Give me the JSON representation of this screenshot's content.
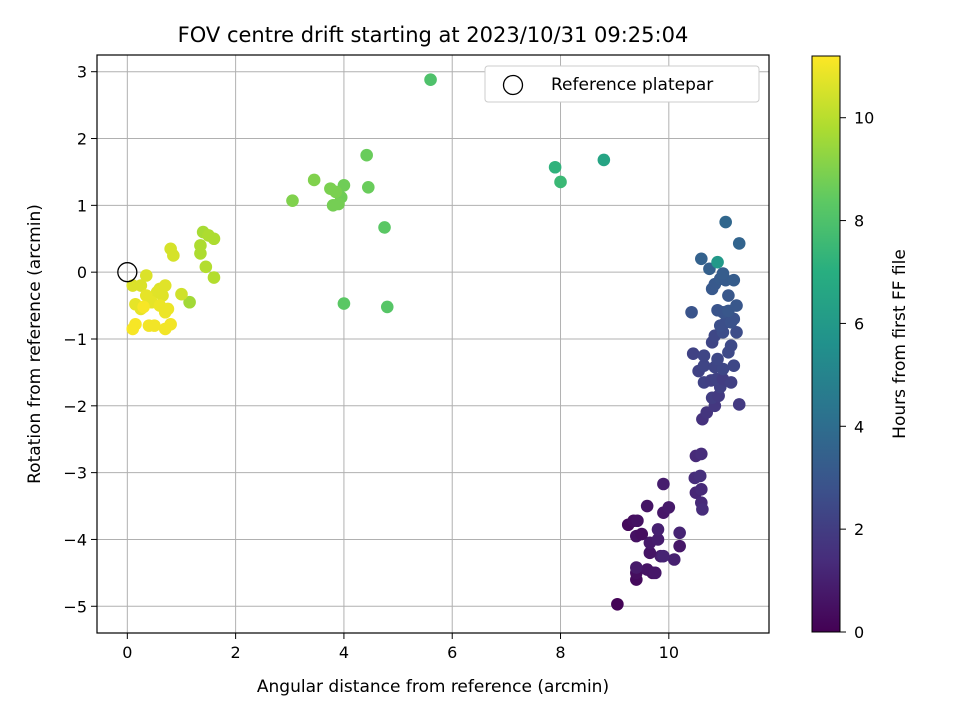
{
  "chart_data": {
    "type": "scatter",
    "title": "FOV centre drift starting at 2023/10/31 09:25:04",
    "xlabel": "Angular distance from reference (arcmin)",
    "ylabel": "Rotation from reference (arcmin)",
    "xlim": [
      -0.56,
      11.85
    ],
    "ylim": [
      -5.4,
      3.25
    ],
    "x_ticks": [
      0,
      2,
      4,
      6,
      8,
      10
    ],
    "y_ticks": [
      3,
      2,
      1,
      0,
      -1,
      -2,
      -3,
      -4,
      -5
    ],
    "x_tick_labels": [
      "0",
      "2",
      "4",
      "6",
      "8",
      "10"
    ],
    "y_tick_labels": [
      "3",
      "2",
      "1",
      "0",
      "−1",
      "−2",
      "−3",
      "−4",
      "−5"
    ],
    "grid": true,
    "legend": {
      "placement": "upper-right",
      "entries": [
        "Reference platepar"
      ]
    },
    "reference_point": {
      "x": 0,
      "y": 0,
      "label": "Reference platepar"
    },
    "colorbar": {
      "label": "Hours from first FF file",
      "colormap": "viridis",
      "range": [
        0,
        11.2
      ],
      "ticks": [
        0,
        2,
        4,
        6,
        8,
        10
      ],
      "tick_labels": [
        "0",
        "2",
        "4",
        "6",
        "8",
        "10"
      ]
    },
    "points": [
      [
        9.05,
        -4.97,
        0.1
      ],
      [
        9.4,
        -4.6,
        0.3
      ],
      [
        9.4,
        -4.5,
        0.4
      ],
      [
        9.7,
        -4.5,
        0.5
      ],
      [
        9.6,
        -4.45,
        0.6
      ],
      [
        9.75,
        -4.5,
        0.7
      ],
      [
        9.4,
        -4.42,
        0.8
      ],
      [
        9.85,
        -4.25,
        0.9
      ],
      [
        10.1,
        -4.3,
        1.0
      ],
      [
        9.9,
        -4.25,
        1.1
      ],
      [
        9.65,
        -4.2,
        0.6
      ],
      [
        10.2,
        -4.1,
        0.7
      ],
      [
        9.65,
        -4.05,
        0.8
      ],
      [
        9.4,
        -3.95,
        0.5
      ],
      [
        9.8,
        -4.0,
        0.9
      ],
      [
        9.5,
        -3.92,
        0.4
      ],
      [
        9.8,
        -3.85,
        1.0
      ],
      [
        10.2,
        -3.9,
        1.1
      ],
      [
        9.25,
        -3.78,
        0.3
      ],
      [
        9.35,
        -3.72,
        0.4
      ],
      [
        9.42,
        -3.72,
        0.5
      ],
      [
        9.6,
        -3.5,
        0.6
      ],
      [
        9.9,
        -3.6,
        0.7
      ],
      [
        10.0,
        -3.52,
        0.8
      ],
      [
        9.9,
        -3.17,
        0.9
      ],
      [
        10.5,
        -3.3,
        1.2
      ],
      [
        10.6,
        -3.25,
        1.3
      ],
      [
        10.48,
        -3.08,
        1.4
      ],
      [
        10.58,
        -3.05,
        1.5
      ],
      [
        10.6,
        -3.45,
        1.3
      ],
      [
        10.62,
        -3.55,
        1.4
      ],
      [
        10.5,
        -2.75,
        1.3
      ],
      [
        10.6,
        -2.72,
        1.4
      ],
      [
        10.62,
        -2.2,
        1.6
      ],
      [
        10.7,
        -2.1,
        1.7
      ],
      [
        10.85,
        -2.0,
        1.8
      ],
      [
        11.3,
        -1.98,
        1.9
      ],
      [
        10.8,
        -1.88,
        2.0
      ],
      [
        10.92,
        -1.85,
        1.9
      ],
      [
        10.95,
        -1.72,
        2.1
      ],
      [
        10.65,
        -1.65,
        2.2
      ],
      [
        10.78,
        -1.62,
        2.1
      ],
      [
        10.88,
        -1.6,
        2.2
      ],
      [
        11.0,
        -1.6,
        2.0
      ],
      [
        11.15,
        -1.65,
        2.1
      ],
      [
        10.55,
        -1.48,
        2.2
      ],
      [
        10.65,
        -1.4,
        2.3
      ],
      [
        10.85,
        -1.42,
        2.3
      ],
      [
        11.0,
        -1.45,
        2.4
      ],
      [
        11.2,
        -1.4,
        2.4
      ],
      [
        10.45,
        -1.22,
        2.2
      ],
      [
        10.65,
        -1.25,
        2.3
      ],
      [
        10.9,
        -1.3,
        2.4
      ],
      [
        11.1,
        -1.2,
        2.5
      ],
      [
        10.8,
        -1.05,
        2.3
      ],
      [
        11.15,
        -1.1,
        2.5
      ],
      [
        10.85,
        -0.95,
        2.4
      ],
      [
        11.0,
        -0.9,
        2.6
      ],
      [
        11.25,
        -0.9,
        2.6
      ],
      [
        10.95,
        -0.8,
        2.7
      ],
      [
        11.05,
        -0.75,
        2.7
      ],
      [
        11.15,
        -0.75,
        2.8
      ],
      [
        11.2,
        -0.7,
        2.8
      ],
      [
        10.42,
        -0.6,
        2.9
      ],
      [
        10.9,
        -0.57,
        2.9
      ],
      [
        11.0,
        -0.6,
        2.9
      ],
      [
        11.1,
        -0.58,
        3.0
      ],
      [
        11.25,
        -0.5,
        3.0
      ],
      [
        11.1,
        -0.35,
        3.0
      ],
      [
        10.8,
        -0.25,
        3.1
      ],
      [
        10.85,
        -0.18,
        3.1
      ],
      [
        10.95,
        -0.1,
        3.2
      ],
      [
        11.05,
        -0.12,
        3.2
      ],
      [
        11.2,
        -0.12,
        3.3
      ],
      [
        11.0,
        -0.02,
        3.3
      ],
      [
        10.75,
        0.05,
        3.4
      ],
      [
        10.6,
        0.2,
        3.5
      ],
      [
        11.3,
        0.43,
        3.6
      ],
      [
        11.05,
        0.75,
        3.7
      ],
      [
        10.9,
        0.15,
        6.0
      ],
      [
        8.8,
        1.68,
        6.5
      ],
      [
        7.9,
        1.57,
        7.2
      ],
      [
        8.0,
        1.35,
        7.5
      ],
      [
        5.6,
        2.88,
        8.0
      ],
      [
        4.8,
        -0.52,
        8.2
      ],
      [
        4.0,
        -0.47,
        8.3
      ],
      [
        4.75,
        0.67,
        8.3
      ],
      [
        4.42,
        1.75,
        8.6
      ],
      [
        4.45,
        1.27,
        8.6
      ],
      [
        4.0,
        1.3,
        8.7
      ],
      [
        3.95,
        1.12,
        8.7
      ],
      [
        3.9,
        1.02,
        8.8
      ],
      [
        3.8,
        1.0,
        8.8
      ],
      [
        3.85,
        1.2,
        8.9
      ],
      [
        3.75,
        1.25,
        8.9
      ],
      [
        3.45,
        1.38,
        9.0
      ],
      [
        3.05,
        1.07,
        9.0
      ],
      [
        1.15,
        -0.45,
        9.6
      ],
      [
        1.35,
        0.28,
        9.8
      ],
      [
        1.35,
        0.4,
        9.8
      ],
      [
        1.4,
        0.6,
        9.7
      ],
      [
        1.5,
        0.55,
        9.8
      ],
      [
        1.6,
        0.5,
        9.8
      ],
      [
        1.45,
        0.08,
        9.9
      ],
      [
        1.6,
        -0.08,
        9.9
      ],
      [
        1.0,
        -0.33,
        10.4
      ],
      [
        0.8,
        0.35,
        10.5
      ],
      [
        0.85,
        0.25,
        10.5
      ],
      [
        0.1,
        -0.2,
        10.6
      ],
      [
        0.25,
        -0.2,
        10.6
      ],
      [
        0.35,
        -0.05,
        10.6
      ],
      [
        0.6,
        -0.25,
        10.6
      ],
      [
        0.55,
        -0.3,
        10.7
      ],
      [
        0.65,
        -0.35,
        10.7
      ],
      [
        0.7,
        -0.2,
        10.7
      ],
      [
        0.35,
        -0.35,
        10.8
      ],
      [
        0.45,
        -0.45,
        10.8
      ],
      [
        0.15,
        -0.48,
        10.8
      ],
      [
        0.25,
        -0.55,
        10.8
      ],
      [
        0.6,
        -0.5,
        10.9
      ],
      [
        0.75,
        -0.55,
        10.9
      ],
      [
        0.7,
        -0.6,
        10.9
      ],
      [
        0.4,
        -0.8,
        11.0
      ],
      [
        0.5,
        -0.8,
        11.0
      ],
      [
        0.7,
        -0.85,
        11.0
      ],
      [
        0.8,
        -0.78,
        11.0
      ],
      [
        0.15,
        -0.78,
        11.1
      ],
      [
        0.1,
        -0.85,
        11.1
      ],
      [
        0.3,
        -0.52,
        11.1
      ]
    ]
  }
}
